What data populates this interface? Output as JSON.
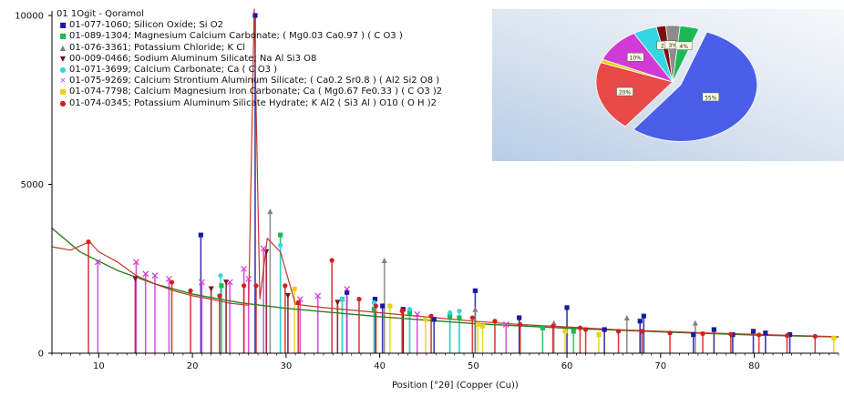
{
  "chart_data": {
    "type": "line",
    "xlabel": "Position [°2θ] (Copper (Cu))",
    "ylabel": "",
    "xlim": [
      5,
      89
    ],
    "ylim": [
      0,
      10000
    ],
    "x_ticks": [
      10,
      20,
      30,
      40,
      50,
      60,
      70,
      80
    ],
    "y_ticks": [
      0,
      5000,
      10000
    ],
    "legend_title": "01 1Ogit - Qoramol",
    "legend_position": "top-left",
    "background_curve": {
      "color": "#2e7d1f",
      "x": [
        5,
        8,
        12,
        16,
        20,
        25,
        30,
        40,
        50,
        60,
        70,
        80,
        89
      ],
      "y": [
        3700,
        3000,
        2450,
        2050,
        1750,
        1500,
        1330,
        1080,
        880,
        740,
        630,
        540,
        480
      ]
    },
    "measured_profile": {
      "color": "#c0392b",
      "x": [
        5,
        7,
        9,
        10,
        12,
        14,
        16,
        18,
        20,
        22,
        24,
        26,
        26.6,
        27.2,
        28,
        29.4,
        31,
        34,
        38,
        40,
        43,
        46,
        50,
        55,
        60,
        65,
        70,
        75,
        80,
        85,
        89
      ],
      "y": [
        3150,
        3050,
        3300,
        3000,
        2700,
        2300,
        2050,
        1850,
        1700,
        1600,
        1480,
        1420,
        10200,
        1600,
        3400,
        3000,
        1450,
        1350,
        1250,
        1200,
        1120,
        1050,
        950,
        850,
        780,
        700,
        650,
        600,
        560,
        520,
        490
      ]
    },
    "phases": [
      {
        "code": "01-077-1060",
        "name": "Silicon Oxide; Si O2",
        "color": "#1a1aa0",
        "marker": "■",
        "peaks": [
          [
            20.9,
            3500
          ],
          [
            26.7,
            10000
          ],
          [
            36.5,
            1800
          ],
          [
            39.5,
            1600
          ],
          [
            40.3,
            1400
          ],
          [
            42.5,
            1300
          ],
          [
            45.8,
            1000
          ],
          [
            50.2,
            1850
          ],
          [
            54.9,
            1050
          ],
          [
            60.0,
            1350
          ],
          [
            64.0,
            700
          ],
          [
            67.8,
            950
          ],
          [
            68.2,
            1100
          ],
          [
            73.5,
            550
          ],
          [
            75.7,
            700
          ],
          [
            77.7,
            550
          ],
          [
            79.9,
            650
          ],
          [
            81.2,
            600
          ],
          [
            83.8,
            550
          ]
        ]
      },
      {
        "code": "01-089-1304",
        "name": "Magnesium Calcium Carbonate; ( Mg0.03 Ca0.97 ) ( C O3 )",
        "color": "#1db954",
        "marker": "■",
        "peaks": [
          [
            23.1,
            2000
          ],
          [
            29.4,
            3500
          ],
          [
            36.0,
            1600
          ],
          [
            39.4,
            1300
          ],
          [
            43.2,
            1200
          ],
          [
            47.5,
            1100
          ],
          [
            48.5,
            1050
          ],
          [
            57.4,
            750
          ],
          [
            60.7,
            650
          ]
        ]
      },
      {
        "code": "01-076-3361",
        "name": "Potassium Chloride; K Cl",
        "color": "#7f7f7f",
        "marker": "▲",
        "peaks": [
          [
            28.3,
            4200
          ],
          [
            40.5,
            2750
          ],
          [
            50.2,
            1300
          ],
          [
            58.6,
            900
          ],
          [
            66.4,
            1050
          ],
          [
            73.7,
            900
          ]
        ]
      },
      {
        "code": "00-009-0466",
        "name": "Sodium Aluminum Silicate; Na Al Si3 O8",
        "color": "#7a1010",
        "marker": "▼",
        "peaks": [
          [
            13.9,
            2200
          ],
          [
            22.0,
            1900
          ],
          [
            23.6,
            2100
          ],
          [
            27.9,
            3000
          ],
          [
            30.2,
            1700
          ],
          [
            35.5,
            1500
          ],
          [
            42.5,
            1250
          ]
        ]
      },
      {
        "code": "01-071-3699",
        "name": "Calcium Carbonate; Ca ( C O3 )",
        "color": "#35d6e0",
        "marker": "●",
        "peaks": [
          [
            23.0,
            2300
          ],
          [
            29.4,
            3200
          ],
          [
            36.0,
            1600
          ],
          [
            39.4,
            1500
          ],
          [
            43.2,
            1300
          ],
          [
            47.5,
            1200
          ],
          [
            48.5,
            1250
          ]
        ]
      },
      {
        "code": "01-075-9269",
        "name": "Calcium Strontium Aluminum Silicate; ( Ca0.2 Sr0.8 ) ( Al2 Si2 O8 )",
        "color": "#d23ad6",
        "marker": "✕",
        "peaks": [
          [
            9.9,
            2700
          ],
          [
            14.0,
            2700
          ],
          [
            15.0,
            2350
          ],
          [
            16.0,
            2300
          ],
          [
            17.5,
            2200
          ],
          [
            21.0,
            2100
          ],
          [
            24.0,
            2100
          ],
          [
            25.5,
            2500
          ],
          [
            26.0,
            2200
          ],
          [
            27.6,
            3100
          ],
          [
            31.5,
            1600
          ],
          [
            33.4,
            1700
          ],
          [
            36.5,
            1900
          ],
          [
            44.0,
            1150
          ],
          [
            53.5,
            850
          ]
        ]
      },
      {
        "code": "01-074-7798",
        "name": "Calcium Magnesium Iron Carbonate; Ca ( Mg0.67 Fe0.33 ) ( C O3 )2",
        "color": "#e8d21a",
        "marker": "■",
        "peaks": [
          [
            30.9,
            1900
          ],
          [
            41.1,
            1400
          ],
          [
            44.9,
            1000
          ],
          [
            50.5,
            850
          ],
          [
            51.0,
            800
          ],
          [
            59.8,
            650
          ],
          [
            63.4,
            550
          ],
          [
            88.5,
            450
          ]
        ]
      },
      {
        "code": "01-074-0345",
        "name": "Potassium Aluminum Silicate Hydrate; K Al2 ( Si3 Al ) O10 ( O H )2",
        "color": "#d0201d",
        "marker": "●",
        "peaks": [
          [
            8.9,
            3300
          ],
          [
            17.8,
            2100
          ],
          [
            19.8,
            1850
          ],
          [
            22.9,
            1700
          ],
          [
            25.5,
            2000
          ],
          [
            26.8,
            2000
          ],
          [
            29.9,
            2000
          ],
          [
            31.3,
            1500
          ],
          [
            34.9,
            2750
          ],
          [
            37.8,
            1600
          ],
          [
            39.6,
            1400
          ],
          [
            42.4,
            1250
          ],
          [
            45.5,
            1100
          ],
          [
            49.9,
            1050
          ],
          [
            52.3,
            950
          ],
          [
            55.0,
            850
          ],
          [
            58.5,
            800
          ],
          [
            61.4,
            750
          ],
          [
            62.0,
            700
          ],
          [
            65.5,
            650
          ],
          [
            68.0,
            650
          ],
          [
            71.0,
            600
          ],
          [
            74.5,
            580
          ],
          [
            77.5,
            560
          ],
          [
            80.5,
            540
          ],
          [
            83.5,
            520
          ],
          [
            86.5,
            500
          ]
        ]
      }
    ],
    "pie": {
      "slices": [
        {
          "label": "55%",
          "value": 55,
          "color": "#4a5ee8"
        },
        {
          "label": "20%",
          "value": 20,
          "color": "#e84a4a"
        },
        {
          "label": "",
          "value": 1,
          "color": "#e8d21a"
        },
        {
          "label": "10%",
          "value": 10,
          "color": "#d23ad6"
        },
        {
          "label": "",
          "value": 5,
          "color": "#35d6e0"
        },
        {
          "label": "2%",
          "value": 2,
          "color": "#7a1010"
        },
        {
          "label": "3%",
          "value": 3,
          "color": "#8c8c8c"
        },
        {
          "label": "4%",
          "value": 4,
          "color": "#1db954"
        }
      ]
    }
  }
}
